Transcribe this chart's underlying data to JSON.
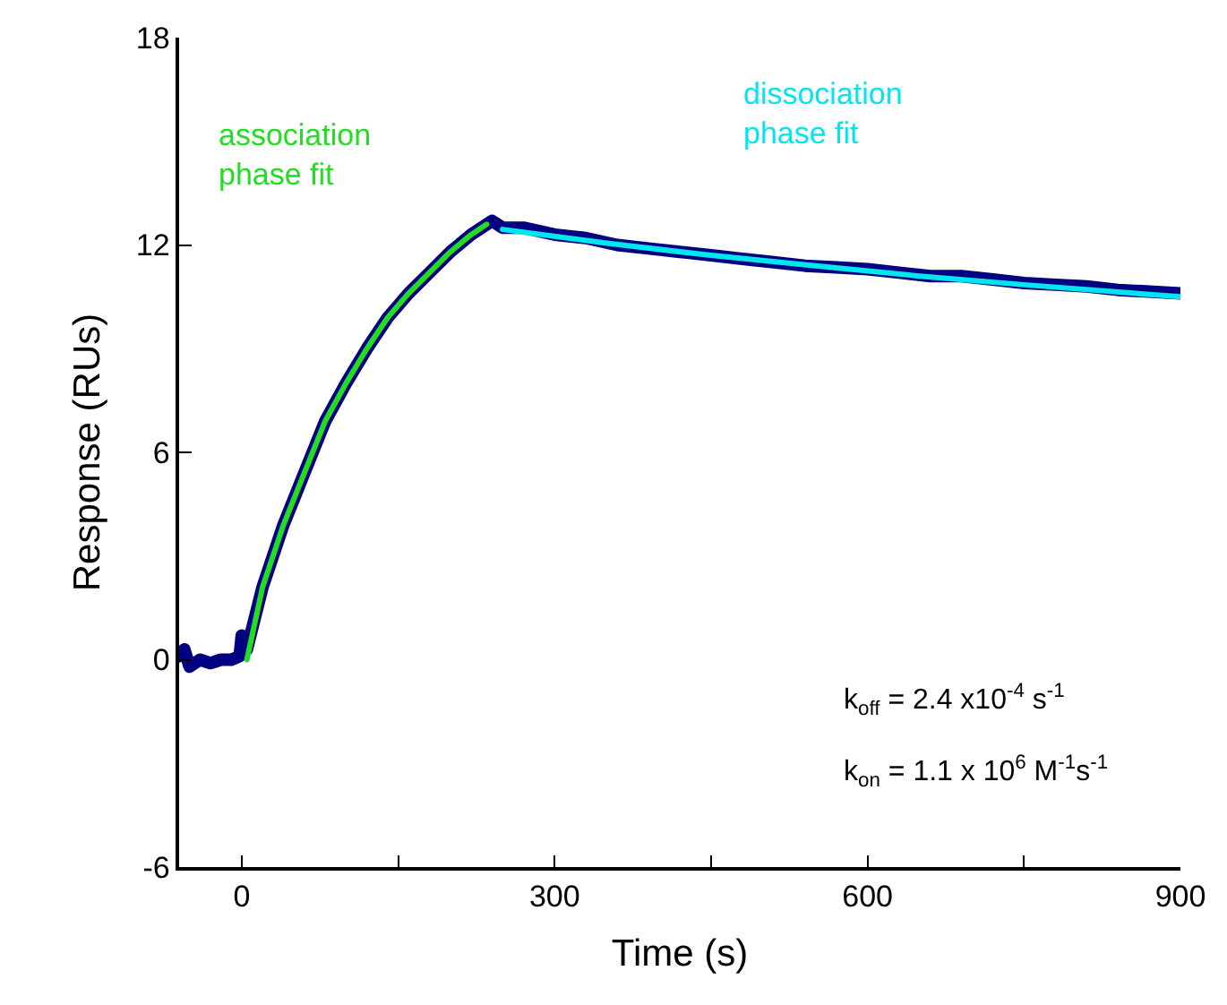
{
  "chart_data": {
    "type": "line",
    "xlabel": "Time (s)",
    "ylabel": "Response (RUs)",
    "xlim": [
      -60,
      900
    ],
    "ylim": [
      -6,
      18
    ],
    "xticks": [
      0,
      {
        "value": 150,
        "label": null
      },
      300,
      {
        "value": 450,
        "label": null
      },
      600,
      {
        "value": 750,
        "label": null
      },
      900
    ],
    "yticks": [
      -6,
      0,
      6,
      12,
      18
    ],
    "grid": false,
    "legend": false,
    "marker": "none",
    "line_style": "solid",
    "series": [
      {
        "color": "#000080",
        "x": [
          -60,
          -55,
          -50,
          -40,
          -30,
          -20,
          -10,
          -2,
          0,
          2,
          5,
          20,
          40,
          60,
          80,
          100,
          120,
          140,
          160,
          180,
          200,
          220,
          235,
          240,
          250,
          270,
          300,
          330,
          360,
          390,
          420,
          450,
          480,
          510,
          540,
          570,
          600,
          630,
          660,
          690,
          720,
          750,
          780,
          810,
          840,
          870,
          900
        ],
        "values": [
          0.1,
          0.3,
          -0.2,
          0,
          -0.1,
          0,
          0,
          0.1,
          0.7,
          0.6,
          0.3,
          2.1,
          3.9,
          5.4,
          6.9,
          8.0,
          9.0,
          9.9,
          10.6,
          11.2,
          11.8,
          12.3,
          12.6,
          12.7,
          12.5,
          12.5,
          12.3,
          12.2,
          12.0,
          11.9,
          11.8,
          11.7,
          11.6,
          11.5,
          11.4,
          11.35,
          11.3,
          11.2,
          11.1,
          11.1,
          11.0,
          10.9,
          10.85,
          10.8,
          10.7,
          10.65,
          10.6
        ]
      },
      {
        "name": "association phase fit",
        "color": "#22dd22",
        "x": [
          5,
          20,
          40,
          60,
          80,
          100,
          120,
          140,
          160,
          180,
          200,
          220,
          235
        ],
        "values": [
          0,
          2.1,
          3.9,
          5.4,
          6.9,
          8.0,
          9.0,
          9.9,
          10.6,
          11.2,
          11.8,
          12.3,
          12.6
        ]
      },
      {
        "name": "dissociation phase fit",
        "color": "#00e5ee",
        "x": [
          250,
          350,
          450,
          550,
          650,
          750,
          900
        ],
        "values": [
          12.45,
          12.05,
          11.7,
          11.4,
          11.1,
          10.85,
          10.5
        ]
      }
    ],
    "annotations": [
      "k$_{off}$ = 2.4 x10$^{-4}$ s$^{-1}$",
      "k$_{on}$ = 1.1 x 10$^{6}$ M$^{-1}$s$^{-1}$"
    ]
  }
}
